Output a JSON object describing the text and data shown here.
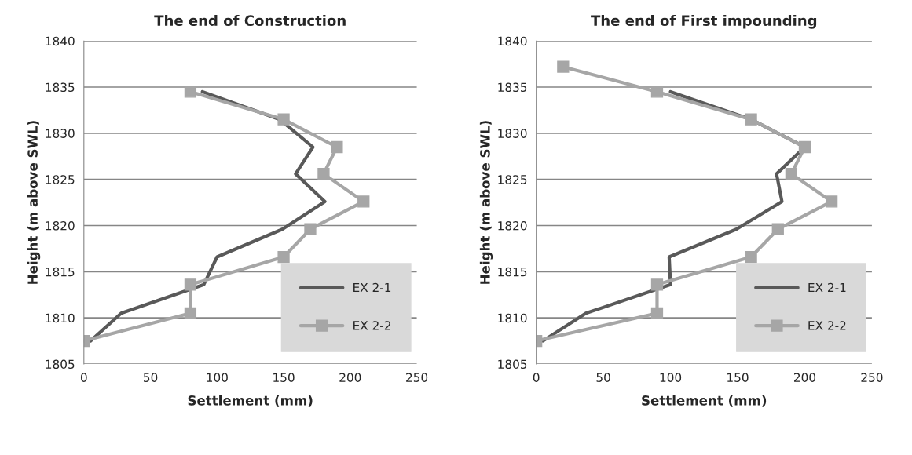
{
  "chart_data": [
    {
      "type": "line",
      "title": "The end of Construction",
      "xlabel": "Settlement (mm)",
      "ylabel": "Height (m above SWL)",
      "xlim": [
        0,
        250
      ],
      "xticks": [
        0,
        50,
        100,
        150,
        200,
        250
      ],
      "ylim": [
        1805,
        1840
      ],
      "yticks": [
        1805,
        1810,
        1815,
        1820,
        1825,
        1830,
        1835,
        1840
      ],
      "grid": "y",
      "legend": "bottom right",
      "line_style": "solid",
      "series": [
        {
          "name": "EX 2-1",
          "color": "#595959",
          "marker": "none",
          "x": [
            5,
            28,
            90,
            100,
            149,
            181,
            159,
            172,
            147,
            89
          ],
          "values": [
            1807.5,
            1810.5,
            1813.6,
            1816.6,
            1819.6,
            1822.6,
            1825.6,
            1828.5,
            1831.5,
            1834.5
          ]
        },
        {
          "name": "EX 2-2",
          "color": "#a6a6a6",
          "marker": "square",
          "x": [
            0,
            80,
            80,
            150,
            170,
            210,
            180,
            190,
            150,
            80
          ],
          "values": [
            1807.5,
            1810.5,
            1813.6,
            1816.6,
            1819.6,
            1822.6,
            1825.6,
            1828.5,
            1831.5,
            1834.5
          ]
        }
      ]
    },
    {
      "type": "line",
      "title": "The end of First impounding",
      "xlabel": "Settlement (mm)",
      "ylabel": "Height (m above SWL)",
      "xlim": [
        0,
        250
      ],
      "xticks": [
        0,
        50,
        100,
        150,
        200,
        250
      ],
      "ylim": [
        1805,
        1840
      ],
      "yticks": [
        1805,
        1810,
        1815,
        1820,
        1825,
        1830,
        1835,
        1840
      ],
      "grid": "y",
      "legend": "bottom right",
      "line_style": "solid",
      "series": [
        {
          "name": "EX 2-1",
          "color": "#595959",
          "marker": "none",
          "x": [
            5,
            37,
            100,
            99,
            149,
            183,
            179,
            200,
            160,
            100
          ],
          "values": [
            1807.5,
            1810.5,
            1813.6,
            1816.6,
            1819.6,
            1822.6,
            1825.6,
            1828.5,
            1831.5,
            1834.5
          ]
        },
        {
          "name": "EX 2-2",
          "color": "#a6a6a6",
          "marker": "square",
          "x": [
            0,
            90,
            90,
            160,
            180,
            220,
            190,
            200,
            160,
            90,
            20
          ],
          "values": [
            1807.5,
            1810.5,
            1813.6,
            1816.6,
            1819.6,
            1822.6,
            1825.6,
            1828.5,
            1831.5,
            1834.5,
            1837.2
          ]
        }
      ]
    }
  ]
}
